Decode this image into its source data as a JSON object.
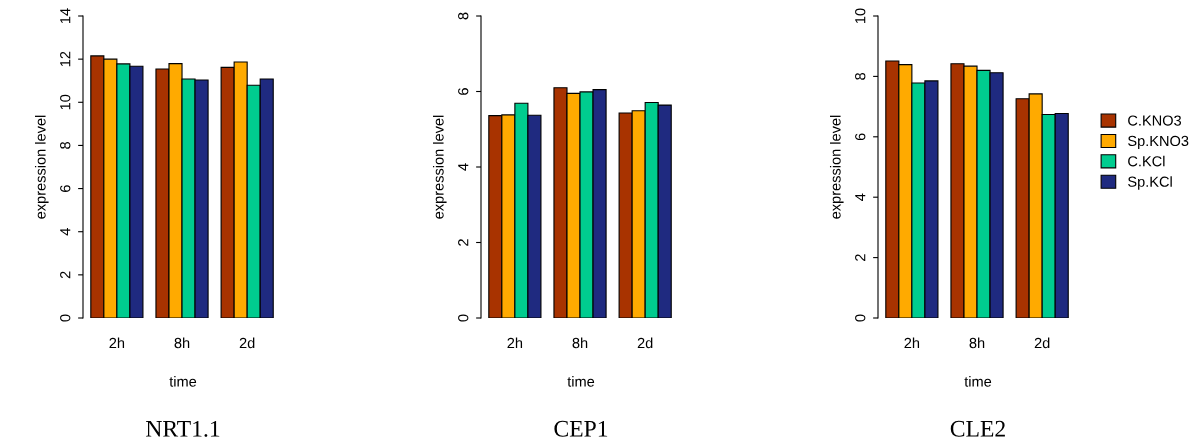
{
  "chart_data": [
    {
      "type": "bar",
      "title": "NRT1.1",
      "xlabel": "time",
      "ylabel": "expression level",
      "categories": [
        "2h",
        "8h",
        "2d"
      ],
      "ylim": [
        0,
        14
      ],
      "yticks": [
        0,
        2,
        4,
        6,
        8,
        10,
        12,
        14
      ],
      "legend": false,
      "series": [
        {
          "color": "#a83300",
          "values": [
            12.15,
            11.54,
            11.62
          ]
        },
        {
          "color": "#ffaa00",
          "values": [
            12.0,
            11.79,
            11.87
          ]
        },
        {
          "color": "#00cc8f",
          "values": [
            11.78,
            11.08,
            10.79
          ]
        },
        {
          "color": "#1f2a80",
          "values": [
            11.67,
            11.03,
            11.08
          ]
        }
      ]
    },
    {
      "type": "bar",
      "title": "CEP1",
      "xlabel": "time",
      "ylabel": "expression level",
      "categories": [
        "2h",
        "8h",
        "2d"
      ],
      "ylim": [
        0,
        8
      ],
      "yticks": [
        0,
        2,
        4,
        6,
        8
      ],
      "legend": false,
      "series": [
        {
          "color": "#a83300",
          "values": [
            5.36,
            6.1,
            5.43
          ]
        },
        {
          "color": "#ffaa00",
          "values": [
            5.38,
            5.95,
            5.49
          ]
        },
        {
          "color": "#00cc8f",
          "values": [
            5.69,
            5.99,
            5.71
          ]
        },
        {
          "color": "#1f2a80",
          "values": [
            5.37,
            6.05,
            5.64
          ]
        }
      ]
    },
    {
      "type": "bar",
      "title": "CLE2",
      "xlabel": "time",
      "ylabel": "expression level",
      "categories": [
        "2h",
        "8h",
        "2d"
      ],
      "ylim": [
        0,
        10
      ],
      "yticks": [
        0,
        2,
        4,
        6,
        8,
        10
      ],
      "legend": "right",
      "series": [
        {
          "name": "C.KNO3",
          "color": "#a83300",
          "values": [
            8.51,
            8.42,
            7.26
          ]
        },
        {
          "name": "Sp.KNO3",
          "color": "#ffaa00",
          "values": [
            8.39,
            8.34,
            7.42
          ]
        },
        {
          "name": "C.KCl",
          "color": "#00cc8f",
          "values": [
            7.78,
            8.2,
            6.74
          ]
        },
        {
          "name": "Sp.KCl",
          "color": "#1f2a80",
          "values": [
            7.85,
            8.12,
            6.77
          ]
        }
      ]
    }
  ]
}
